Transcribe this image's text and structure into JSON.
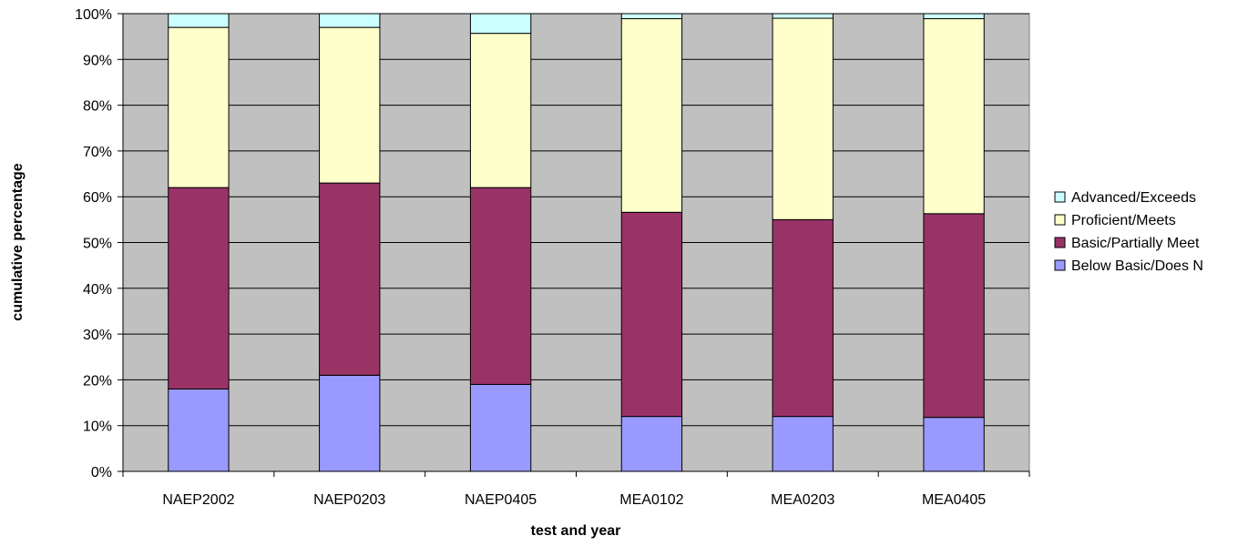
{
  "chart_data": {
    "type": "bar",
    "stacked": true,
    "categories": [
      "NAEP2002",
      "NAEP0203",
      "NAEP0405",
      "MEA0102",
      "MEA0203",
      "MEA0405"
    ],
    "series": [
      {
        "name": "Below Basic/Does Not Meet",
        "legend_label": "Below Basic/Does N",
        "color": "#9999ff",
        "values": [
          18,
          21,
          19,
          12,
          12,
          11.8
        ]
      },
      {
        "name": "Basic/Partially Meets",
        "legend_label": "Basic/Partially Meet",
        "color": "#993366",
        "values": [
          44,
          42,
          43,
          44.6,
          43,
          44.5
        ]
      },
      {
        "name": "Proficient/Meets",
        "legend_label": "Proficient/Meets",
        "color": "#ffffcc",
        "values": [
          35,
          34,
          33.7,
          42.3,
          44,
          42.6
        ]
      },
      {
        "name": "Advanced/Exceeds",
        "legend_label": "Advanced/Exceeds",
        "color": "#ccffff",
        "values": [
          3,
          3,
          4.3,
          1.1,
          1,
          1.1
        ]
      }
    ],
    "xlabel": "test and year",
    "ylabel": "cumulative percentage",
    "ylim": [
      0,
      100
    ],
    "yticks": [
      "0%",
      "10%",
      "20%",
      "30%",
      "40%",
      "50%",
      "60%",
      "70%",
      "80%",
      "90%",
      "100%"
    ],
    "grid": true,
    "plot_background": "#c0c0c0",
    "legend_position": "right"
  }
}
